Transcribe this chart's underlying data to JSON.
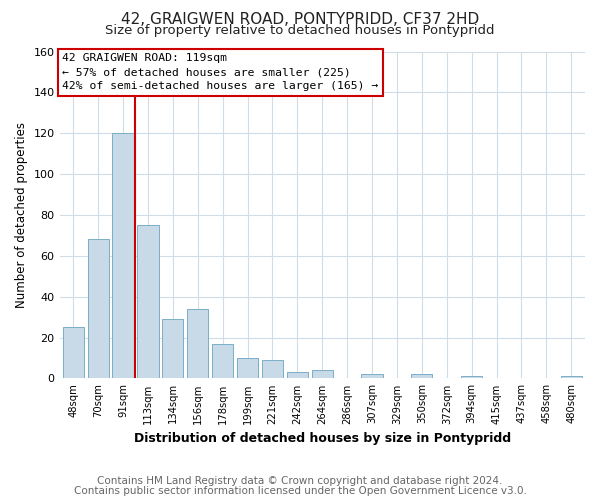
{
  "title": "42, GRAIGWEN ROAD, PONTYPRIDD, CF37 2HD",
  "subtitle": "Size of property relative to detached houses in Pontypridd",
  "xlabel": "Distribution of detached houses by size in Pontypridd",
  "ylabel": "Number of detached properties",
  "bar_labels": [
    "48sqm",
    "70sqm",
    "91sqm",
    "113sqm",
    "134sqm",
    "156sqm",
    "178sqm",
    "199sqm",
    "221sqm",
    "242sqm",
    "264sqm",
    "286sqm",
    "307sqm",
    "329sqm",
    "350sqm",
    "372sqm",
    "394sqm",
    "415sqm",
    "437sqm",
    "458sqm",
    "480sqm"
  ],
  "bar_heights": [
    25,
    68,
    120,
    75,
    29,
    34,
    17,
    10,
    9,
    3,
    4,
    0,
    2,
    0,
    2,
    0,
    1,
    0,
    0,
    0,
    1
  ],
  "bar_color": "#c8d9e8",
  "bar_edge_color": "#7aaec8",
  "ylim": [
    0,
    160
  ],
  "yticks": [
    0,
    20,
    40,
    60,
    80,
    100,
    120,
    140,
    160
  ],
  "property_line_color": "#cc0000",
  "annotation_title": "42 GRAIGWEN ROAD: 119sqm",
  "annotation_line1": "← 57% of detached houses are smaller (225)",
  "annotation_line2": "42% of semi-detached houses are larger (165) →",
  "annotation_box_color": "#ffffff",
  "annotation_box_edge": "#cc0000",
  "footer1": "Contains HM Land Registry data © Crown copyright and database right 2024.",
  "footer2": "Contains public sector information licensed under the Open Government Licence v3.0.",
  "background_color": "#ffffff",
  "grid_color": "#d0dce8",
  "title_fontsize": 11,
  "subtitle_fontsize": 9.5,
  "xlabel_fontsize": 9,
  "ylabel_fontsize": 8.5,
  "footer_fontsize": 7.5
}
